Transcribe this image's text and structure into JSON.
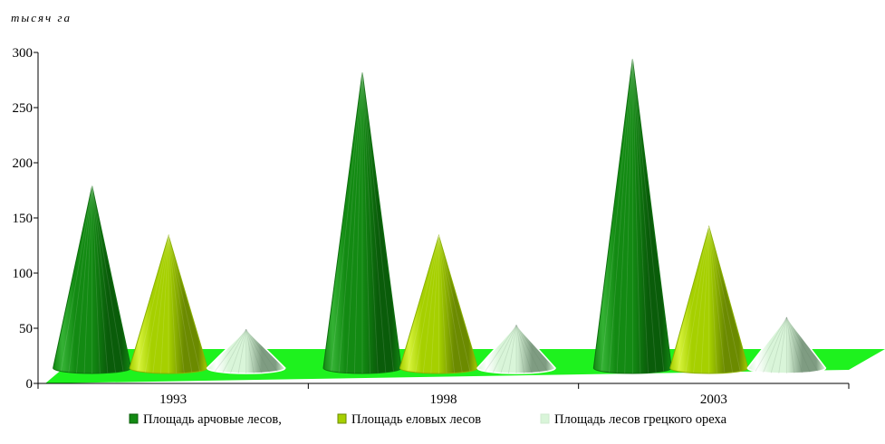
{
  "chart_data": {
    "type": "bar",
    "style": "3d-cone",
    "ylabel": "тысяч га",
    "categories": [
      "1993",
      "1998",
      "2003"
    ],
    "series": [
      {
        "name": "Площадь арчовые лесов,",
        "values": [
          165,
          268,
          280
        ],
        "color": "#138a13",
        "dark": "#0a5c0a",
        "light": "#35b235",
        "edge": "#0f6e0f"
      },
      {
        "name": "Площадь еловых лесов",
        "values": [
          120,
          120,
          128
        ],
        "color": "#a6d000",
        "dark": "#6b8a00",
        "light": "#d6f23a",
        "edge": "#8bb000"
      },
      {
        "name": "Площадь лесов грецкого ореха",
        "values": [
          35,
          39,
          46
        ],
        "color": "#d9f5d9",
        "dark": "#7f9c82",
        "light": "#ffffff",
        "edge": "#ffffff"
      }
    ],
    "ylim": [
      0,
      300
    ],
    "yticks": [
      "0",
      "50",
      "100",
      "150",
      "200",
      "250",
      "300"
    ],
    "grid": false,
    "legend": "bottom",
    "floor_color": "#1ef21e",
    "axis_color": "#000000"
  }
}
